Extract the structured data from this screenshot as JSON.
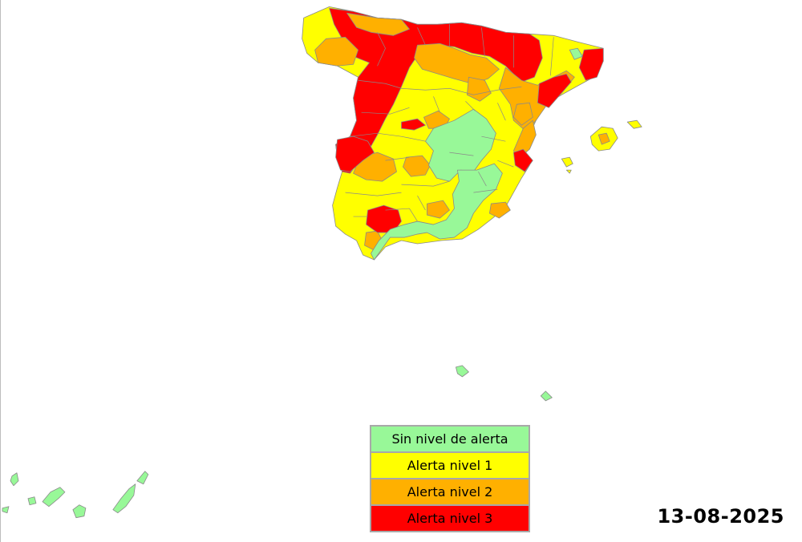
{
  "colors": {
    "none": "#98F898",
    "level1": "#FFFF00",
    "level2": "#FFB000",
    "level3": "#FF0000"
  },
  "legend": {
    "items": [
      {
        "label": "Sin nivel de alerta",
        "color": "#98F898"
      },
      {
        "label": "Alerta nivel 1",
        "color": "#FFFF00"
      },
      {
        "label": "Alerta nivel 2",
        "color": "#FFB000"
      },
      {
        "label": "Alerta nivel 3",
        "color": "#FF0000"
      }
    ]
  },
  "date": "13-08-2025"
}
